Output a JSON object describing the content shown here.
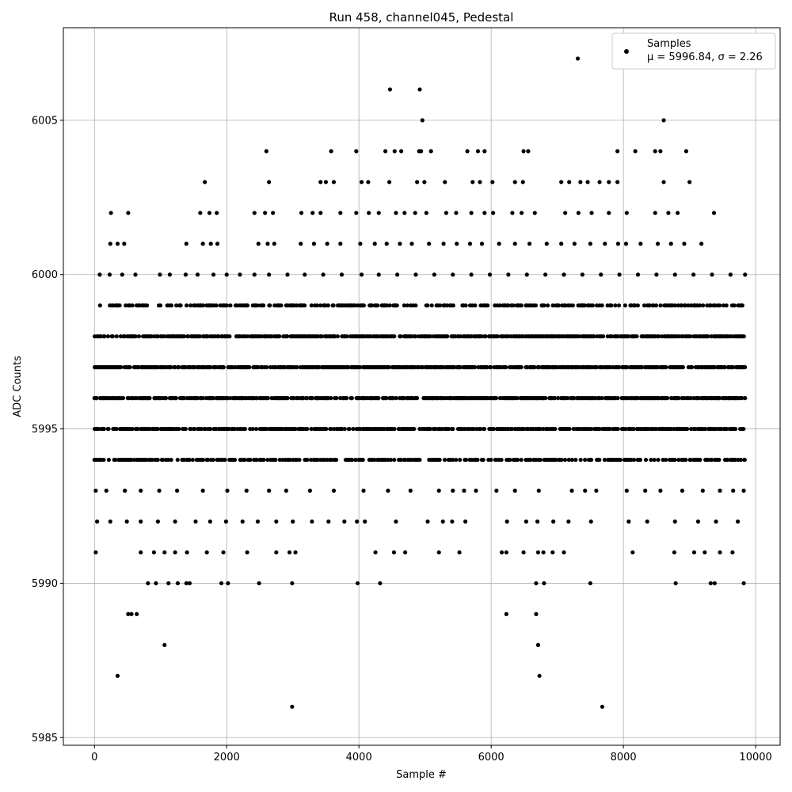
{
  "chart_data": {
    "type": "scatter",
    "title": "Run 458, channel045, Pedestal",
    "xlabel": "Sample #",
    "ylabel": "ADC Counts",
    "xlim": [
      -470,
      10370
    ],
    "ylim": [
      5984.75,
      6008.0
    ],
    "xticks": [
      0,
      2000,
      4000,
      6000,
      8000,
      10000
    ],
    "xtick_labels": [
      "0",
      "2000",
      "4000",
      "6000",
      "8000",
      "10000"
    ],
    "yticks": [
      5985,
      5990,
      5995,
      6000,
      6005
    ],
    "ytick_labels": [
      "5985",
      "5990",
      "5995",
      "6000",
      "6005"
    ],
    "grid": true,
    "legend": {
      "placement": "top-right",
      "entries": [
        {
          "marker": "dot",
          "line1": "Samples",
          "line2": "μ = 5996.84, σ = 2.26"
        }
      ]
    },
    "marker_color": "#000000",
    "series": [
      {
        "name": "Samples",
        "dense_levels": [
          {
            "y": 5999,
            "x_start": 40,
            "x_end": 9840,
            "occupancy": 0.55
          },
          {
            "y": 5998,
            "x_start": 0,
            "x_end": 9840,
            "occupancy": 0.8
          },
          {
            "y": 5997,
            "x_start": 0,
            "x_end": 9840,
            "occupancy": 0.85
          },
          {
            "y": 5996,
            "x_start": 0,
            "x_end": 9840,
            "occupancy": 0.8
          },
          {
            "y": 5995,
            "x_start": 0,
            "x_end": 9840,
            "occupancy": 0.75
          },
          {
            "y": 5994,
            "x_start": 0,
            "x_end": 9840,
            "occupancy": 0.55
          }
        ],
        "points": [
          [
            7310,
            6007
          ],
          [
            4470,
            6006
          ],
          [
            4920,
            6006
          ],
          [
            4960,
            6005
          ],
          [
            8610,
            6005
          ],
          [
            2600,
            6004
          ],
          [
            3580,
            6004
          ],
          [
            3960,
            6004
          ],
          [
            4400,
            6004
          ],
          [
            4540,
            6004
          ],
          [
            4640,
            6004
          ],
          [
            4910,
            6004
          ],
          [
            4940,
            6004
          ],
          [
            5090,
            6004
          ],
          [
            5640,
            6004
          ],
          [
            5800,
            6004
          ],
          [
            5900,
            6004
          ],
          [
            6490,
            6004
          ],
          [
            6560,
            6004
          ],
          [
            7910,
            6004
          ],
          [
            8180,
            6004
          ],
          [
            8480,
            6004
          ],
          [
            8560,
            6004
          ],
          [
            8950,
            6004
          ],
          [
            1670,
            6003
          ],
          [
            2640,
            6003
          ],
          [
            3420,
            6003
          ],
          [
            3500,
            6003
          ],
          [
            3620,
            6003
          ],
          [
            4040,
            6003
          ],
          [
            4140,
            6003
          ],
          [
            4460,
            6003
          ],
          [
            4880,
            6003
          ],
          [
            4990,
            6003
          ],
          [
            5300,
            6003
          ],
          [
            5720,
            6003
          ],
          [
            5830,
            6003
          ],
          [
            6020,
            6003
          ],
          [
            6360,
            6003
          ],
          [
            6480,
            6003
          ],
          [
            7060,
            6003
          ],
          [
            7180,
            6003
          ],
          [
            7350,
            6003
          ],
          [
            7460,
            6003
          ],
          [
            7640,
            6003
          ],
          [
            7780,
            6003
          ],
          [
            7910,
            6003
          ],
          [
            8610,
            6003
          ],
          [
            9000,
            6003
          ],
          [
            250,
            6002
          ],
          [
            510,
            6002
          ],
          [
            1600,
            6002
          ],
          [
            1740,
            6002
          ],
          [
            1850,
            6002
          ],
          [
            2420,
            6002
          ],
          [
            2580,
            6002
          ],
          [
            2700,
            6002
          ],
          [
            3130,
            6002
          ],
          [
            3300,
            6002
          ],
          [
            3420,
            6002
          ],
          [
            3720,
            6002
          ],
          [
            3960,
            6002
          ],
          [
            4150,
            6002
          ],
          [
            4300,
            6002
          ],
          [
            4560,
            6002
          ],
          [
            4690,
            6002
          ],
          [
            4850,
            6002
          ],
          [
            5020,
            6002
          ],
          [
            5320,
            6002
          ],
          [
            5470,
            6002
          ],
          [
            5700,
            6002
          ],
          [
            5900,
            6002
          ],
          [
            6030,
            6002
          ],
          [
            6320,
            6002
          ],
          [
            6460,
            6002
          ],
          [
            6660,
            6002
          ],
          [
            7120,
            6002
          ],
          [
            7320,
            6002
          ],
          [
            7520,
            6002
          ],
          [
            7780,
            6002
          ],
          [
            8050,
            6002
          ],
          [
            8480,
            6002
          ],
          [
            8680,
            6002
          ],
          [
            8820,
            6002
          ],
          [
            9370,
            6002
          ],
          [
            240,
            6001
          ],
          [
            350,
            6001
          ],
          [
            450,
            6001
          ],
          [
            1390,
            6001
          ],
          [
            1640,
            6001
          ],
          [
            1760,
            6001
          ],
          [
            1860,
            6001
          ],
          [
            2480,
            6001
          ],
          [
            2620,
            6001
          ],
          [
            2720,
            6001
          ],
          [
            3120,
            6001
          ],
          [
            3320,
            6001
          ],
          [
            3520,
            6001
          ],
          [
            3720,
            6001
          ],
          [
            4020,
            6001
          ],
          [
            4240,
            6001
          ],
          [
            4420,
            6001
          ],
          [
            4620,
            6001
          ],
          [
            4800,
            6001
          ],
          [
            5060,
            6001
          ],
          [
            5280,
            6001
          ],
          [
            5480,
            6001
          ],
          [
            5680,
            6001
          ],
          [
            5860,
            6001
          ],
          [
            6120,
            6001
          ],
          [
            6360,
            6001
          ],
          [
            6580,
            6001
          ],
          [
            6840,
            6001
          ],
          [
            7060,
            6001
          ],
          [
            7260,
            6001
          ],
          [
            7500,
            6001
          ],
          [
            7720,
            6001
          ],
          [
            7920,
            6001
          ],
          [
            8040,
            6001
          ],
          [
            8260,
            6001
          ],
          [
            8520,
            6001
          ],
          [
            8720,
            6001
          ],
          [
            8920,
            6001
          ],
          [
            9180,
            6001
          ],
          [
            80,
            6000
          ],
          [
            230,
            6000
          ],
          [
            420,
            6000
          ],
          [
            620,
            6000
          ],
          [
            990,
            6000
          ],
          [
            1140,
            6000
          ],
          [
            1380,
            6000
          ],
          [
            1560,
            6000
          ],
          [
            1800,
            6000
          ],
          [
            2000,
            6000
          ],
          [
            2200,
            6000
          ],
          [
            2420,
            6000
          ],
          [
            2640,
            6000
          ],
          [
            2920,
            6000
          ],
          [
            3180,
            6000
          ],
          [
            3460,
            6000
          ],
          [
            3740,
            6000
          ],
          [
            4040,
            6000
          ],
          [
            4300,
            6000
          ],
          [
            4580,
            6000
          ],
          [
            4860,
            6000
          ],
          [
            5140,
            6000
          ],
          [
            5420,
            6000
          ],
          [
            5700,
            6000
          ],
          [
            5980,
            6000
          ],
          [
            6260,
            6000
          ],
          [
            6540,
            6000
          ],
          [
            6820,
            6000
          ],
          [
            7100,
            6000
          ],
          [
            7380,
            6000
          ],
          [
            7660,
            6000
          ],
          [
            7940,
            6000
          ],
          [
            8220,
            6000
          ],
          [
            8500,
            6000
          ],
          [
            8780,
            6000
          ],
          [
            9060,
            6000
          ],
          [
            9340,
            6000
          ],
          [
            9620,
            6000
          ],
          [
            9840,
            6000
          ],
          [
            20,
            5993
          ],
          [
            180,
            5993
          ],
          [
            460,
            5993
          ],
          [
            700,
            5993
          ],
          [
            980,
            5993
          ],
          [
            1250,
            5993
          ],
          [
            1640,
            5993
          ],
          [
            2010,
            5993
          ],
          [
            2300,
            5993
          ],
          [
            2640,
            5993
          ],
          [
            2900,
            5993
          ],
          [
            3260,
            5993
          ],
          [
            3620,
            5993
          ],
          [
            4070,
            5993
          ],
          [
            4440,
            5993
          ],
          [
            4780,
            5993
          ],
          [
            5210,
            5993
          ],
          [
            5420,
            5993
          ],
          [
            5590,
            5993
          ],
          [
            5770,
            5993
          ],
          [
            6080,
            5993
          ],
          [
            6360,
            5993
          ],
          [
            6720,
            5993
          ],
          [
            7220,
            5993
          ],
          [
            7420,
            5993
          ],
          [
            7590,
            5993
          ],
          [
            8050,
            5993
          ],
          [
            8330,
            5993
          ],
          [
            8560,
            5993
          ],
          [
            8890,
            5993
          ],
          [
            9200,
            5993
          ],
          [
            9460,
            5993
          ],
          [
            9660,
            5993
          ],
          [
            9820,
            5993
          ],
          [
            40,
            5992
          ],
          [
            240,
            5992
          ],
          [
            490,
            5992
          ],
          [
            700,
            5992
          ],
          [
            960,
            5992
          ],
          [
            1220,
            5992
          ],
          [
            1530,
            5992
          ],
          [
            1750,
            5992
          ],
          [
            1990,
            5992
          ],
          [
            2240,
            5992
          ],
          [
            2470,
            5992
          ],
          [
            2750,
            5992
          ],
          [
            3000,
            5992
          ],
          [
            3290,
            5992
          ],
          [
            3540,
            5992
          ],
          [
            3780,
            5992
          ],
          [
            3970,
            5992
          ],
          [
            4090,
            5992
          ],
          [
            4560,
            5992
          ],
          [
            5040,
            5992
          ],
          [
            5270,
            5992
          ],
          [
            5410,
            5992
          ],
          [
            5610,
            5992
          ],
          [
            6240,
            5992
          ],
          [
            6530,
            5992
          ],
          [
            6700,
            5992
          ],
          [
            6940,
            5992
          ],
          [
            7170,
            5992
          ],
          [
            7510,
            5992
          ],
          [
            8080,
            5992
          ],
          [
            8360,
            5992
          ],
          [
            8780,
            5992
          ],
          [
            9130,
            5992
          ],
          [
            9400,
            5992
          ],
          [
            9730,
            5992
          ],
          [
            20,
            5991
          ],
          [
            700,
            5991
          ],
          [
            900,
            5991
          ],
          [
            1060,
            5991
          ],
          [
            1220,
            5991
          ],
          [
            1400,
            5991
          ],
          [
            1700,
            5991
          ],
          [
            1950,
            5991
          ],
          [
            2310,
            5991
          ],
          [
            2750,
            5991
          ],
          [
            2950,
            5991
          ],
          [
            3040,
            5991
          ],
          [
            4250,
            5991
          ],
          [
            4530,
            5991
          ],
          [
            4700,
            5991
          ],
          [
            5210,
            5991
          ],
          [
            5520,
            5991
          ],
          [
            6160,
            5991
          ],
          [
            6230,
            5991
          ],
          [
            6490,
            5991
          ],
          [
            6710,
            5991
          ],
          [
            6790,
            5991
          ],
          [
            6930,
            5991
          ],
          [
            7100,
            5991
          ],
          [
            8140,
            5991
          ],
          [
            8770,
            5991
          ],
          [
            9070,
            5991
          ],
          [
            9230,
            5991
          ],
          [
            9460,
            5991
          ],
          [
            9650,
            5991
          ],
          [
            810,
            5990
          ],
          [
            930,
            5990
          ],
          [
            1120,
            5990
          ],
          [
            1260,
            5990
          ],
          [
            1390,
            5990
          ],
          [
            1440,
            5990
          ],
          [
            1920,
            5990
          ],
          [
            2020,
            5990
          ],
          [
            2490,
            5990
          ],
          [
            2990,
            5990
          ],
          [
            3980,
            5990
          ],
          [
            4320,
            5990
          ],
          [
            6680,
            5990
          ],
          [
            6800,
            5990
          ],
          [
            7500,
            5990
          ],
          [
            8790,
            5990
          ],
          [
            9320,
            5990
          ],
          [
            9380,
            5990
          ],
          [
            9820,
            5990
          ],
          [
            510,
            5989
          ],
          [
            560,
            5989
          ],
          [
            640,
            5989
          ],
          [
            6230,
            5989
          ],
          [
            6680,
            5989
          ],
          [
            1060,
            5988
          ],
          [
            6710,
            5988
          ],
          [
            350,
            5987
          ],
          [
            6730,
            5987
          ],
          [
            2990,
            5986
          ],
          [
            7680,
            5986
          ]
        ]
      }
    ]
  }
}
